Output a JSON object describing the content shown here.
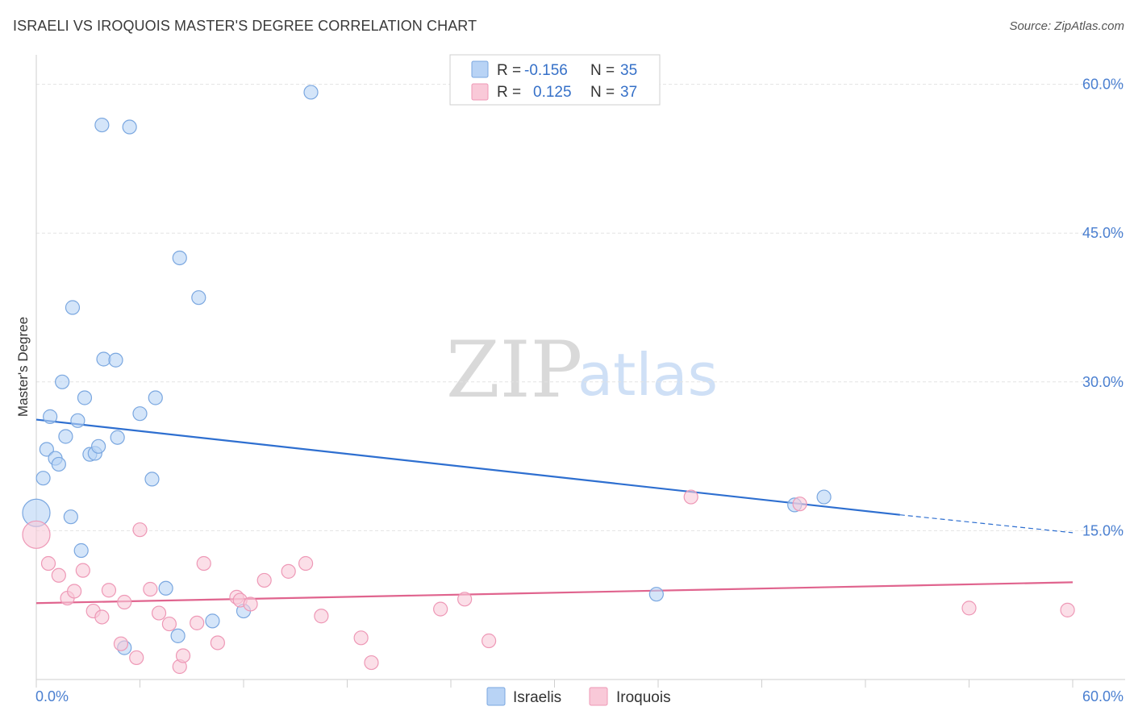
{
  "title": "ISRAELI VS IROQUOIS MASTER'S DEGREE CORRELATION CHART",
  "source": "Source: ZipAtlas.com",
  "watermark": {
    "part1": "ZIP",
    "part2": "atlas"
  },
  "colors": {
    "israelis_fill": "#b8d3f5",
    "israelis_stroke": "#7aa7e0",
    "israelis_line": "#2e6fd0",
    "iroquois_fill": "#f9c9d8",
    "iroquois_stroke": "#ee98b6",
    "iroquois_line": "#e0648e",
    "tick_text": "#4a7fd0",
    "grid": "#e3e3e3"
  },
  "legend": {
    "rows": [
      {
        "r_label": "R = ",
        "r_value": "-0.156",
        "n_label": "N = ",
        "n_value": "35"
      },
      {
        "r_label": "R = ",
        "r_value": "0.125",
        "n_label": "N = ",
        "n_value": "37"
      }
    ]
  },
  "bottom_legend": {
    "israelis": "Israelis",
    "iroquois": "Iroquois"
  },
  "chart_data": {
    "type": "scatter",
    "title": "ISRAELI VS IROQUOIS MASTER'S DEGREE CORRELATION CHART",
    "xlabel": "",
    "ylabel": "Master's Degree",
    "xlim": [
      0,
      60
    ],
    "ylim": [
      0,
      62
    ],
    "x_tick_labels": [
      {
        "value": 0,
        "label": "0.0%"
      },
      {
        "value": 60,
        "label": "60.0%"
      }
    ],
    "y_tick_labels": [
      {
        "value": 15,
        "label": "15.0%"
      },
      {
        "value": 30,
        "label": "30.0%"
      },
      {
        "value": 45,
        "label": "45.0%"
      },
      {
        "value": 60,
        "label": "60.0%"
      }
    ],
    "gridlines_y": [
      15,
      30,
      45,
      60
    ],
    "x_minor_ticks": [
      0,
      6,
      12,
      18,
      24,
      30,
      36,
      42,
      48,
      54,
      60
    ],
    "series": [
      {
        "name": "Israelis",
        "r": -0.156,
        "n": 35,
        "trend": {
          "x0": 0,
          "y0": 26.2,
          "x1": 50,
          "y1": 16.6,
          "dash_to_x": 60,
          "dash_to_y": 14.8
        },
        "points": [
          {
            "x": 0.0,
            "y": 16.8,
            "big": true
          },
          {
            "x": 0.4,
            "y": 20.3
          },
          {
            "x": 0.6,
            "y": 23.2
          },
          {
            "x": 0.8,
            "y": 26.5
          },
          {
            "x": 1.1,
            "y": 22.3
          },
          {
            "x": 1.3,
            "y": 21.7
          },
          {
            "x": 1.5,
            "y": 30.0
          },
          {
            "x": 1.7,
            "y": 24.5
          },
          {
            "x": 2.0,
            "y": 16.4
          },
          {
            "x": 2.1,
            "y": 37.5
          },
          {
            "x": 2.4,
            "y": 26.1
          },
          {
            "x": 2.6,
            "y": 13.0
          },
          {
            "x": 2.8,
            "y": 28.4
          },
          {
            "x": 3.1,
            "y": 22.7
          },
          {
            "x": 3.4,
            "y": 22.8
          },
          {
            "x": 3.6,
            "y": 23.5
          },
          {
            "x": 3.8,
            "y": 55.9
          },
          {
            "x": 3.9,
            "y": 32.3
          },
          {
            "x": 4.6,
            "y": 32.2
          },
          {
            "x": 4.7,
            "y": 24.4
          },
          {
            "x": 5.1,
            "y": 3.2
          },
          {
            "x": 5.4,
            "y": 55.7
          },
          {
            "x": 6.0,
            "y": 26.8
          },
          {
            "x": 6.7,
            "y": 20.2
          },
          {
            "x": 6.9,
            "y": 28.4
          },
          {
            "x": 7.5,
            "y": 9.2
          },
          {
            "x": 8.2,
            "y": 4.4
          },
          {
            "x": 8.3,
            "y": 42.5
          },
          {
            "x": 9.4,
            "y": 38.5
          },
          {
            "x": 10.2,
            "y": 5.9
          },
          {
            "x": 12.0,
            "y": 6.9
          },
          {
            "x": 15.9,
            "y": 59.2
          },
          {
            "x": 35.9,
            "y": 8.6
          },
          {
            "x": 43.9,
            "y": 17.6
          },
          {
            "x": 45.6,
            "y": 18.4
          }
        ]
      },
      {
        "name": "Iroquois",
        "r": 0.125,
        "n": 37,
        "trend": {
          "x0": 0,
          "y0": 7.7,
          "x1": 60,
          "y1": 9.8
        },
        "points": [
          {
            "x": 0.0,
            "y": 14.6,
            "big": true
          },
          {
            "x": 0.7,
            "y": 11.7
          },
          {
            "x": 1.3,
            "y": 10.5
          },
          {
            "x": 1.8,
            "y": 8.2
          },
          {
            "x": 2.2,
            "y": 8.9
          },
          {
            "x": 2.7,
            "y": 11.0
          },
          {
            "x": 3.3,
            "y": 6.9
          },
          {
            "x": 3.8,
            "y": 6.3
          },
          {
            "x": 4.2,
            "y": 9.0
          },
          {
            "x": 4.9,
            "y": 3.6
          },
          {
            "x": 5.1,
            "y": 7.8
          },
          {
            "x": 5.8,
            "y": 2.2
          },
          {
            "x": 6.0,
            "y": 15.1
          },
          {
            "x": 6.6,
            "y": 9.1
          },
          {
            "x": 7.1,
            "y": 6.7
          },
          {
            "x": 7.7,
            "y": 5.6
          },
          {
            "x": 8.3,
            "y": 1.3
          },
          {
            "x": 8.5,
            "y": 2.4
          },
          {
            "x": 9.3,
            "y": 5.7
          },
          {
            "x": 9.7,
            "y": 11.7
          },
          {
            "x": 10.5,
            "y": 3.7
          },
          {
            "x": 11.6,
            "y": 8.3
          },
          {
            "x": 11.8,
            "y": 8.0
          },
          {
            "x": 12.4,
            "y": 7.6
          },
          {
            "x": 13.2,
            "y": 10.0
          },
          {
            "x": 14.6,
            "y": 10.9
          },
          {
            "x": 15.6,
            "y": 11.7
          },
          {
            "x": 16.5,
            "y": 6.4
          },
          {
            "x": 18.8,
            "y": 4.2
          },
          {
            "x": 19.4,
            "y": 1.7
          },
          {
            "x": 23.4,
            "y": 7.1
          },
          {
            "x": 24.8,
            "y": 8.1
          },
          {
            "x": 26.2,
            "y": 3.9
          },
          {
            "x": 37.9,
            "y": 18.4
          },
          {
            "x": 44.2,
            "y": 17.7
          },
          {
            "x": 54.0,
            "y": 7.2
          },
          {
            "x": 59.7,
            "y": 7.0
          }
        ]
      }
    ]
  }
}
